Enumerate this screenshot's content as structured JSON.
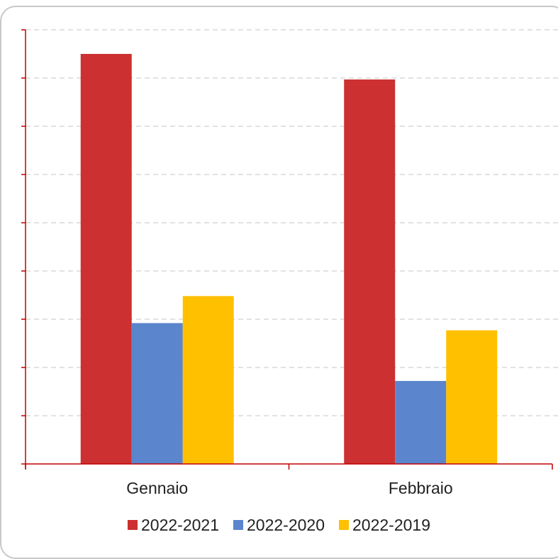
{
  "chart_data": {
    "type": "bar",
    "categories": [
      "Gennaio",
      "Febbraio"
    ],
    "series": [
      {
        "name": "2022-2021",
        "color": "#CC3030",
        "values": [
          8.5,
          7.97
        ]
      },
      {
        "name": "2022-2020",
        "color": "#5B85CC",
        "values": [
          2.92,
          1.72
        ]
      },
      {
        "name": "2022-2019",
        "color": "#FFC000",
        "values": [
          3.48,
          2.77
        ]
      }
    ],
    "ylim": [
      0,
      9
    ],
    "y_ticks": 9,
    "grid": true,
    "legend": "bottom",
    "axis_color": "#C00000",
    "grid_color": "#D0D0D0",
    "title": "",
    "xlabel": "",
    "ylabel": ""
  }
}
